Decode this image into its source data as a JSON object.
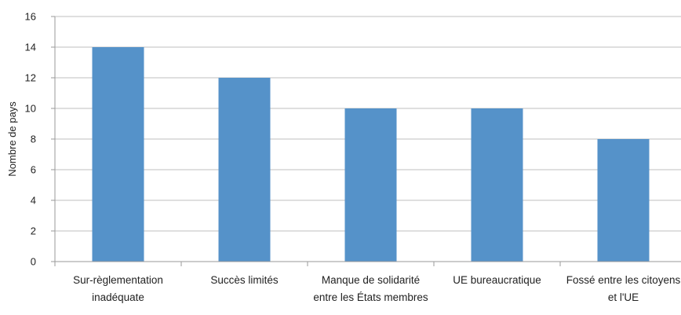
{
  "chart_data": {
    "type": "bar",
    "title": "",
    "xlabel": "",
    "ylabel": "Nombre de pays",
    "categories": [
      [
        "Sur-règlementation",
        "inadéquate"
      ],
      [
        "Succès limités"
      ],
      [
        "Manque de solidarité",
        "entre les États membres"
      ],
      [
        "UE bureaucratique"
      ],
      [
        "Fossé entre les citoyens",
        "et l'UE"
      ]
    ],
    "values": [
      14,
      12,
      10,
      10,
      8
    ],
    "ylim": [
      0,
      16
    ],
    "yticks": [
      0,
      2,
      4,
      6,
      8,
      10,
      12,
      14,
      16
    ],
    "grid": true,
    "bar_color": "#5592c9",
    "grid_color": "#bfbfbf",
    "axis_color": "#9a9a9a"
  }
}
